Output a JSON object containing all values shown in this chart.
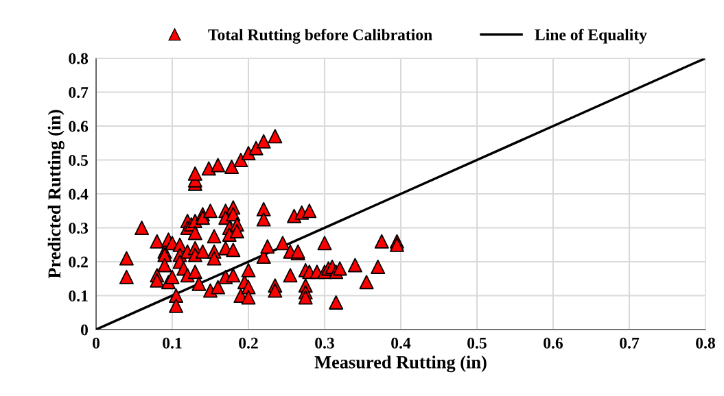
{
  "chart_data": {
    "type": "scatter",
    "xlabel": "Measured Rutting (in)",
    "ylabel": "Predicted Rutting (in)",
    "xlim": [
      0,
      0.8
    ],
    "ylim": [
      0,
      0.8
    ],
    "xticks": [
      0,
      0.1,
      0.2,
      0.3,
      0.4,
      0.5,
      0.6,
      0.7,
      0.8
    ],
    "yticks": [
      0,
      0.1,
      0.2,
      0.3,
      0.4,
      0.5,
      0.6,
      0.7,
      0.8
    ],
    "grid": true,
    "legend": "top",
    "series": [
      {
        "name": "Total Rutting before Calibration",
        "color": "#ff0000",
        "marker": "triangle",
        "x": [
          0.13,
          0.13,
          0.13,
          0.148,
          0.16,
          0.178,
          0.19,
          0.2,
          0.21,
          0.22,
          0.235,
          0.04,
          0.04,
          0.06,
          0.08,
          0.08,
          0.08,
          0.09,
          0.09,
          0.09,
          0.095,
          0.095,
          0.1,
          0.1,
          0.105,
          0.105,
          0.11,
          0.11,
          0.11,
          0.115,
          0.12,
          0.12,
          0.12,
          0.12,
          0.125,
          0.13,
          0.13,
          0.13,
          0.13,
          0.13,
          0.135,
          0.14,
          0.14,
          0.14,
          0.15,
          0.15,
          0.155,
          0.155,
          0.155,
          0.16,
          0.17,
          0.17,
          0.17,
          0.17,
          0.175,
          0.175,
          0.18,
          0.18,
          0.18,
          0.18,
          0.185,
          0.185,
          0.19,
          0.195,
          0.2,
          0.2,
          0.2,
          0.22,
          0.22,
          0.22,
          0.225,
          0.235,
          0.235,
          0.245,
          0.255,
          0.255,
          0.26,
          0.265,
          0.265,
          0.27,
          0.275,
          0.275,
          0.275,
          0.275,
          0.28,
          0.28,
          0.29,
          0.3,
          0.3,
          0.305,
          0.31,
          0.315,
          0.315,
          0.32,
          0.34,
          0.355,
          0.37,
          0.375,
          0.395,
          0.395
        ],
        "values": [
          0.43,
          0.44,
          0.46,
          0.475,
          0.485,
          0.48,
          0.5,
          0.52,
          0.535,
          0.555,
          0.57,
          0.21,
          0.155,
          0.3,
          0.26,
          0.16,
          0.145,
          0.23,
          0.22,
          0.19,
          0.14,
          0.265,
          0.155,
          0.255,
          0.1,
          0.07,
          0.25,
          0.22,
          0.2,
          0.18,
          0.32,
          0.3,
          0.23,
          0.16,
          0.31,
          0.32,
          0.285,
          0.24,
          0.22,
          0.17,
          0.135,
          0.34,
          0.33,
          0.23,
          0.35,
          0.115,
          0.275,
          0.23,
          0.21,
          0.125,
          0.35,
          0.33,
          0.24,
          0.155,
          0.3,
          0.28,
          0.36,
          0.34,
          0.235,
          0.16,
          0.31,
          0.29,
          0.1,
          0.14,
          0.175,
          0.125,
          0.095,
          0.355,
          0.325,
          0.215,
          0.245,
          0.13,
          0.115,
          0.255,
          0.23,
          0.16,
          0.335,
          0.225,
          0.23,
          0.345,
          0.175,
          0.13,
          0.11,
          0.095,
          0.35,
          0.17,
          0.17,
          0.255,
          0.17,
          0.18,
          0.185,
          0.17,
          0.08,
          0.18,
          0.19,
          0.14,
          0.185,
          0.26,
          0.26,
          0.25
        ]
      },
      {
        "name": "Line of Equality",
        "color": "#000000",
        "type": "line",
        "x": [
          0,
          0.8
        ],
        "values": [
          0,
          0.8
        ]
      }
    ]
  }
}
